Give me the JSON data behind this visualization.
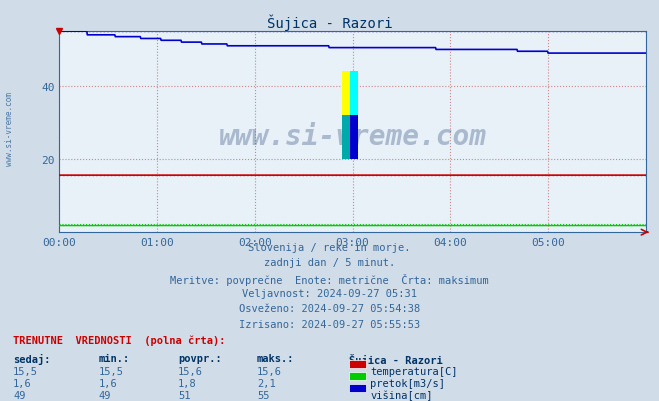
{
  "title": "Šujica - Razori",
  "bg_color": "#d0dce8",
  "plot_bg_color": "#e8f0f8",
  "xlim": [
    0,
    1152
  ],
  "ylim": [
    0,
    55
  ],
  "yticks": [
    20,
    40
  ],
  "xtick_labels": [
    "00:00",
    "01:00",
    "02:00",
    "03:00",
    "04:00",
    "05:00"
  ],
  "xtick_positions": [
    0,
    192,
    384,
    576,
    768,
    960
  ],
  "temperatura_color": "#cc0000",
  "pretok_color": "#00cc00",
  "visina_color": "#0000cc",
  "temperatura_value": 15.6,
  "temperatura_max": 15.6,
  "pretok_value": 1.8,
  "pretok_max": 2.1,
  "visina_max": 55,
  "watermark": "www.si-vreme.com",
  "subtitle_lines": [
    "Slovenija / reke in morje.",
    "zadnji dan / 5 minut.",
    "Meritve: povprečne  Enote: metrične  Črta: maksimum",
    "Veljavnost: 2024-09-27 05:31",
    "Osveženo: 2024-09-27 05:54:38",
    "Izrisano: 2024-09-27 05:55:53"
  ],
  "table_header": "TRENUTNE  VREDNOSTI  (polna črta):",
  "col_headers": [
    "sedaj:",
    "min.:",
    "povpr.:",
    "maks.:",
    "Šujica - Razori"
  ],
  "row1": [
    "15,5",
    "15,5",
    "15,6",
    "15,6",
    "temperatura[C]"
  ],
  "row2": [
    "1,6",
    "1,6",
    "1,8",
    "2,1",
    "pretok[m3/s]"
  ],
  "row3": [
    "49",
    "49",
    "51",
    "55",
    "višina[cm]"
  ],
  "row_colors": [
    "#cc0000",
    "#00cc00",
    "#0000cc"
  ],
  "logo_yellow": "yellow",
  "logo_cyan": "cyan",
  "logo_blue": "#0000cc",
  "logo_teal": "#00aaaa"
}
